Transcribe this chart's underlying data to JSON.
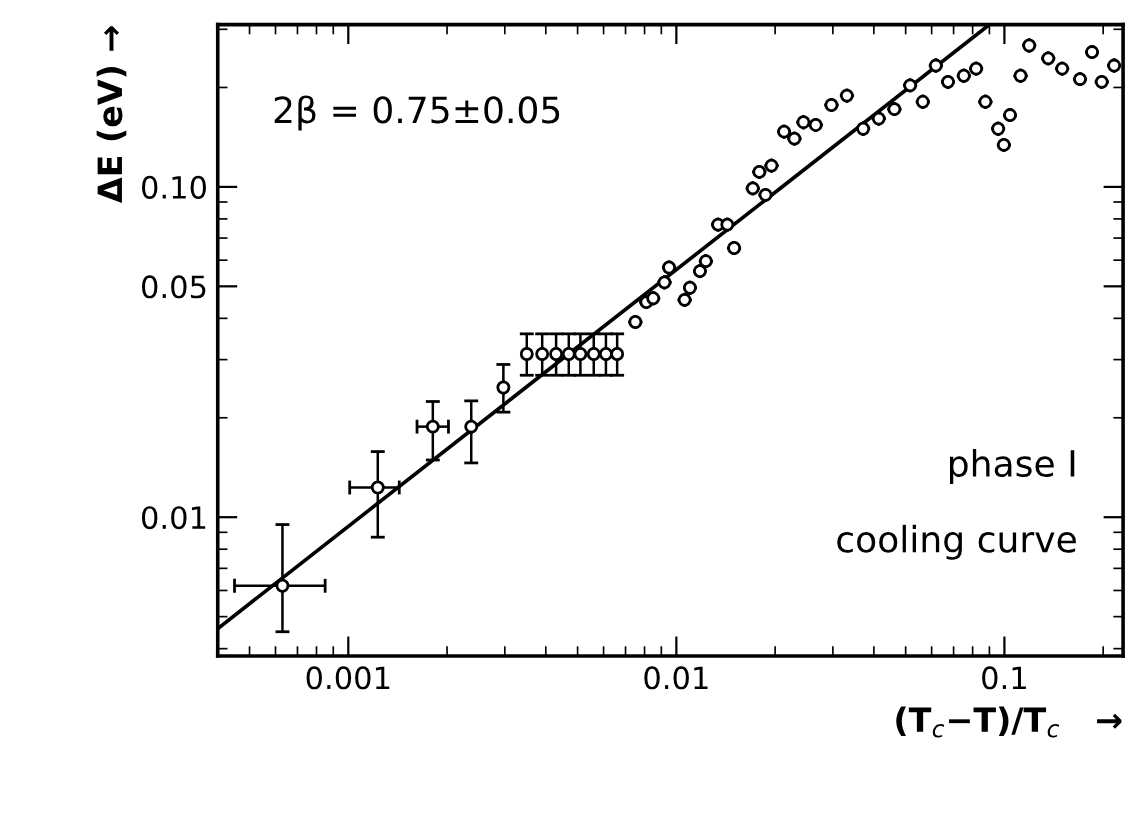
{
  "chart_data": {
    "type": "scatter",
    "xlabel": "(T$_{c}$−T)/T$_{c}$   →",
    "ylabel": "ΔE (eV) →",
    "log": "xy",
    "xlim": [
      0.0004,
      0.23
    ],
    "ylim": [
      0.0038,
      0.31
    ],
    "xticks": [
      0.001,
      0.01,
      0.1
    ],
    "yticks": [
      0.01,
      0.05,
      {
        "value": 0.1,
        "label": "0.10"
      }
    ],
    "grid": false,
    "legend": false,
    "marker": "circle",
    "annotations": [
      "2β = 0.75±0.05",
      "phase I",
      "cooling curve"
    ],
    "series": [
      {
        "color": "#000000",
        "x": [
          0.00063,
          0.00123,
          0.00181,
          0.00237,
          0.00297,
          0.0035,
          0.0039,
          0.0043,
          0.0047,
          0.0051,
          0.0056,
          0.0061,
          0.0066,
          0.0075,
          0.0081,
          0.0085,
          0.0092,
          0.0095,
          0.0106,
          0.011,
          0.0118,
          0.0123,
          0.0134,
          0.0143,
          0.015,
          0.0171,
          0.0179,
          0.0187,
          0.0195,
          0.0213,
          0.0229,
          0.0244,
          0.0266,
          0.0297,
          0.0331,
          0.0371,
          0.0414,
          0.0462,
          0.0516,
          0.0564,
          0.0618,
          0.0673,
          0.0752,
          0.082,
          0.0875,
          0.0957,
          0.0996,
          0.104,
          0.112,
          0.119,
          0.136,
          0.15,
          0.17,
          0.185,
          0.198,
          0.216
        ],
        "values": [
          0.0062,
          0.0123,
          0.0188,
          0.0188,
          0.0247,
          0.0312,
          0.0312,
          0.0312,
          0.0312,
          0.0312,
          0.0312,
          0.0312,
          0.0312,
          0.039,
          0.0448,
          0.046,
          0.0514,
          0.057,
          0.0455,
          0.0495,
          0.0556,
          0.0596,
          0.0769,
          0.0769,
          0.0653,
          0.099,
          0.111,
          0.0946,
          0.116,
          0.147,
          0.14,
          0.157,
          0.154,
          0.177,
          0.189,
          0.15,
          0.161,
          0.172,
          0.203,
          0.181,
          0.233,
          0.208,
          0.217,
          0.228,
          0.181,
          0.15,
          0.134,
          0.165,
          0.217,
          0.268,
          0.245,
          0.228,
          0.212,
          0.256,
          0.208,
          0.233
        ],
        "errors": [
          [
            0.0045,
            0.0095
          ],
          [
            0.0087,
            0.0158
          ],
          [
            0.0149,
            0.0224
          ],
          [
            0.0146,
            0.0225
          ],
          [
            0.0208,
            0.029
          ],
          [
            0.0269,
            0.0359
          ],
          [
            0.0269,
            0.0359
          ],
          [
            0.0269,
            0.0359
          ],
          [
            0.0269,
            0.0359
          ],
          [
            0.0269,
            0.0359
          ],
          [
            0.0269,
            0.0359
          ],
          [
            0.0269,
            0.0359
          ],
          [
            0.0269,
            0.0359
          ],
          null,
          null,
          null,
          null,
          null,
          null,
          null,
          null,
          null,
          null,
          null,
          null,
          null,
          null,
          null,
          null,
          null,
          null,
          null,
          null,
          null,
          null,
          null,
          null,
          null,
          null,
          null,
          null,
          null,
          null,
          null,
          null,
          null,
          null,
          null,
          null,
          null,
          null,
          null,
          null,
          null,
          null,
          null
        ],
        "xerrors": [
          [
            0.00045,
            0.00085
          ],
          [
            0.00101,
            0.00143
          ],
          [
            0.00162,
            0.00202
          ],
          null,
          null,
          null,
          null,
          null,
          null,
          null,
          null,
          null,
          null,
          null,
          null,
          null,
          null,
          null,
          null,
          null,
          null,
          null,
          null,
          null,
          null,
          null,
          null,
          null,
          null,
          null,
          null,
          null,
          null,
          null,
          null,
          null,
          null,
          null,
          null,
          null,
          null,
          null,
          null,
          null,
          null,
          null,
          null,
          null,
          null,
          null,
          null,
          null,
          null,
          null,
          null,
          null
        ]
      },
      {
        "color": "#000000",
        "type": "line",
        "marker": "none",
        "x": [
          0.0004,
          0.09
        ],
        "values": [
          0.0046,
          0.31
        ]
      }
    ]
  }
}
